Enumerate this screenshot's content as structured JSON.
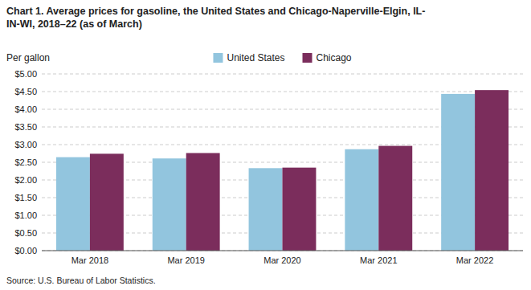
{
  "chart_data": {
    "type": "bar",
    "title": "Chart 1. Average prices for gasoline, the United States and Chicago-Naperville-Elgin, IL-\nIN-WI, 2018–22 (as of March)",
    "y_label": "Per gallon",
    "annotations": [
      "Source: U.S. Bureau of Labor Statistics."
    ],
    "categories": [
      "Mar 2018",
      "Mar 2019",
      "Mar 2020",
      "Mar 2021",
      "Mar 2022"
    ],
    "series": [
      {
        "name": "United States",
        "color": "#92C5DE",
        "values": [
          2.644,
          2.608,
          2.334,
          2.869,
          4.434
        ]
      },
      {
        "name": "Chicago",
        "color": "#7B2D5C",
        "values": [
          2.741,
          2.761,
          2.349,
          2.964,
          4.542
        ]
      }
    ],
    "ylim": [
      0,
      5.0
    ],
    "yticks": [
      {
        "value": 0.0,
        "label": "$0.00"
      },
      {
        "value": 0.5,
        "label": "$0.50"
      },
      {
        "value": 1.0,
        "label": "$1.00"
      },
      {
        "value": 1.5,
        "label": "$1.50"
      },
      {
        "value": 2.0,
        "label": "$2.00"
      },
      {
        "value": 2.5,
        "label": "$2.50"
      },
      {
        "value": 3.0,
        "label": "$3.00"
      },
      {
        "value": 3.5,
        "label": "$3.50"
      },
      {
        "value": 4.0,
        "label": "$4.00"
      },
      {
        "value": 4.5,
        "label": "$4.50"
      },
      {
        "value": 5.0,
        "label": "$5.00"
      }
    ],
    "grid": true,
    "legend": "top"
  }
}
